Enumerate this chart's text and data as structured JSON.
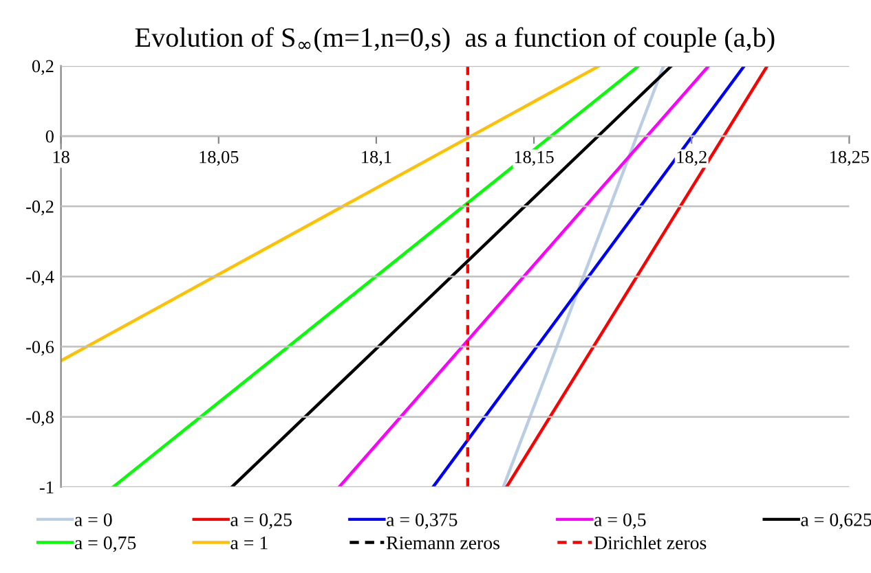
{
  "chart_data": {
    "type": "line",
    "title": "Evolution of S$_{∞}$(m=1,n=0,s)  as a function of couple (a,b)",
    "xlim": [
      18,
      18.25
    ],
    "ylim": [
      -1,
      0.2
    ],
    "xticks": [
      18,
      {
        "value": 18.05,
        "label": "18,05"
      },
      {
        "value": 18.1,
        "label": "18,1"
      },
      {
        "value": 18.15,
        "label": "18,15"
      },
      {
        "value": 18.2,
        "label": "18,2"
      },
      {
        "value": 18.25,
        "label": "18,25"
      }
    ],
    "yticks": [
      {
        "value": -1,
        "label": "-1"
      },
      {
        "value": -0.8,
        "label": "-0,8"
      },
      {
        "value": -0.6,
        "label": "-0,6"
      },
      {
        "value": -0.4,
        "label": "-0,4"
      },
      {
        "value": -0.2,
        "label": "-0,2"
      },
      0,
      {
        "value": 0.2,
        "label": "0,2"
      }
    ],
    "grid": "y",
    "legend": "bottom",
    "line_style": "solid",
    "series": [
      {
        "name": "a = 0",
        "color": "#b9cde5",
        "x": [
          18.1403,
          18.1911
        ],
        "values": [
          -1,
          0.2
        ]
      },
      {
        "name": "a = 0,25",
        "color": "#ff0000",
        "x": [
          18.1413,
          18.224
        ],
        "values": [
          -1,
          0.2
        ]
      },
      {
        "name": "a = 0,375",
        "color": "#0000ff",
        "x": [
          18.118,
          18.2167
        ],
        "values": [
          -1,
          0.2
        ]
      },
      {
        "name": "a = 0,5",
        "color": "#ff00ff",
        "x": [
          18.0882,
          18.2054
        ],
        "values": [
          -1,
          0.2
        ]
      },
      {
        "name": "a = 0,625",
        "color": "#000000",
        "x": [
          18.0542,
          18.1936
        ],
        "values": [
          -1,
          0.2
        ]
      },
      {
        "name": "a = 0,75",
        "color": "#00ff00",
        "x": [
          18.0165,
          18.1832
        ],
        "values": [
          -1,
          0.2
        ]
      },
      {
        "name": "a = 1",
        "color": "#ffc000",
        "x": [
          18,
          18.1707
        ],
        "values": [
          -0.64,
          0.2
        ]
      },
      {
        "name": "Riemann zeros",
        "color": "#000000",
        "line_style": "dashed"
      },
      {
        "name": "Dirichlet zeros",
        "color": "#ff0000",
        "line_style": "dashed",
        "x": [
          18.129,
          18.129
        ],
        "values": [
          -1,
          0.2
        ]
      }
    ]
  }
}
